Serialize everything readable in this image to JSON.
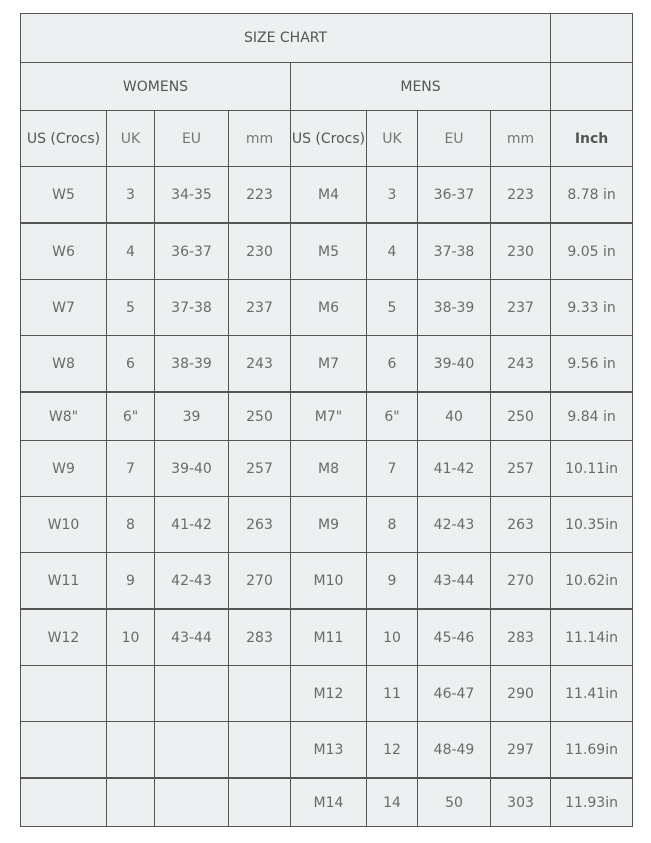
{
  "title": "SIZE CHART",
  "groups": {
    "womens": "WOMENS",
    "mens": "MENS"
  },
  "headers": [
    "US (Crocs)",
    "UK",
    "EU",
    "mm",
    "US (Crocs)",
    "UK",
    "EU",
    "mm",
    "Inch"
  ],
  "rows": [
    [
      "W5",
      "3",
      "34-35",
      "223",
      "M4",
      "3",
      "36-37",
      "223",
      "8.78 in"
    ],
    [
      "W6",
      "4",
      "36-37",
      "230",
      "M5",
      "4",
      "37-38",
      "230",
      "9.05 in"
    ],
    [
      "W7",
      "5",
      "37-38",
      "237",
      "M6",
      "5",
      "38-39",
      "237",
      "9.33 in"
    ],
    [
      "W8",
      "6",
      "38-39",
      "243",
      "M7",
      "6",
      "39-40",
      "243",
      "9.56 in"
    ],
    [
      "W8\"",
      "6\"",
      "39",
      "250",
      "M7\"",
      "6\"",
      "40",
      "250",
      "9.84 in"
    ],
    [
      "W9",
      "7",
      "39-40",
      "257",
      "M8",
      "7",
      "41-42",
      "257",
      "10.11in"
    ],
    [
      "W10",
      "8",
      "41-42",
      "263",
      "M9",
      "8",
      "42-43",
      "263",
      "10.35in"
    ],
    [
      "W11",
      "9",
      "42-43",
      "270",
      "M10",
      "9",
      "43-44",
      "270",
      "10.62in"
    ],
    [
      "W12",
      "10",
      "43-44",
      "283",
      "M11",
      "10",
      "45-46",
      "283",
      "11.14in"
    ],
    [
      "",
      "",
      "",
      "",
      "M12",
      "11",
      "46-47",
      "290",
      "11.41in"
    ],
    [
      "",
      "",
      "",
      "",
      "M13",
      "12",
      "48-49",
      "297",
      "11.69in"
    ],
    [
      "",
      "",
      "",
      "",
      "M14",
      "14",
      "50",
      "303",
      "11.93in"
    ]
  ]
}
